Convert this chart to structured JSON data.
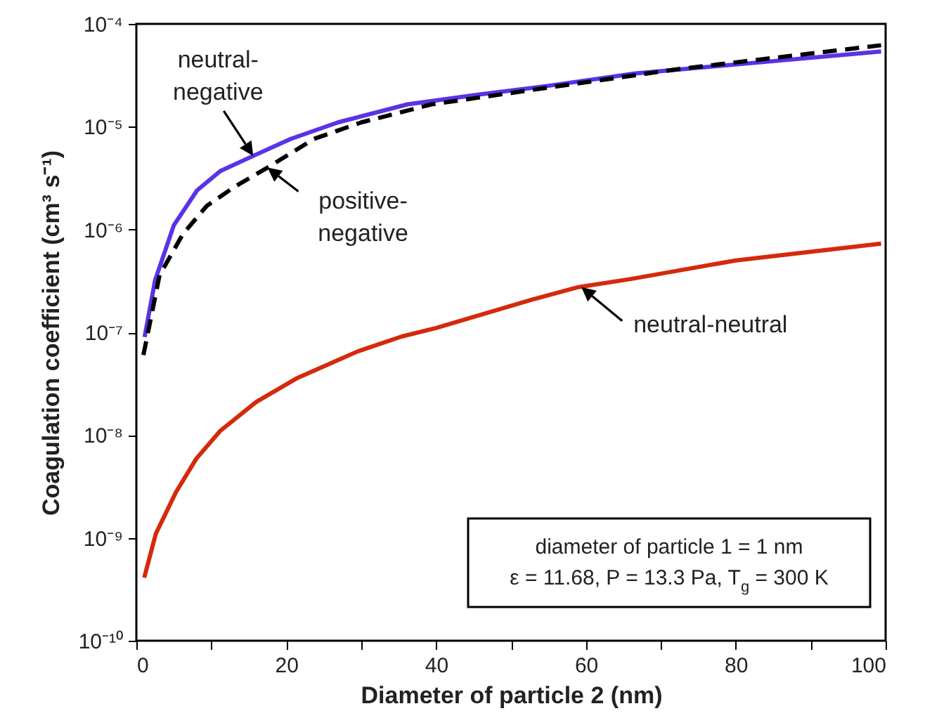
{
  "chart_data": {
    "type": "line",
    "xlabel": "Diameter of particle 2 (nm)",
    "ylabel": "Coagulation coefficient (cm³ s⁻¹)",
    "xlim": [
      0,
      100
    ],
    "ylim": [
      1e-10,
      0.0001
    ],
    "log": "y",
    "grid": false,
    "marker": "none",
    "xticks": [
      0,
      {
        "value": 10,
        "label": null
      },
      20,
      {
        "value": 30,
        "label": null
      },
      40,
      {
        "value": 50,
        "label": null
      },
      60,
      {
        "value": 70,
        "label": null
      },
      80,
      {
        "value": 90,
        "label": null
      },
      100
    ],
    "yticks": [
      {
        "value": 1e-10,
        "label": "10⁻¹⁰"
      },
      {
        "value": 1e-09,
        "label": "10⁻⁹"
      },
      {
        "value": 1e-08,
        "label": "10⁻⁸"
      },
      {
        "value": 1e-07,
        "label": "10⁻⁷"
      },
      {
        "value": 1e-06,
        "label": "10⁻⁶"
      },
      {
        "value": 1e-05,
        "label": "10⁻⁵"
      },
      {
        "value": 0.0001,
        "label": "10⁻⁴"
      }
    ],
    "series": [
      {
        "color": "#d42a0c",
        "line_style": "solid",
        "x": [
          1.05,
          2.6,
          5.3,
          8,
          11.2,
          16,
          21.5,
          29.5,
          35.4,
          40,
          53,
          59,
          66,
          80,
          99.4
        ],
        "values": [
          4.1e-10,
          1.1e-09,
          2.8e-09,
          5.9e-09,
          1.1e-08,
          2.1e-08,
          3.6e-08,
          6.5e-08,
          9.1e-08,
          1.1e-07,
          2.1e-07,
          2.75e-07,
          3.3e-07,
          5e-07,
          7.3e-07
        ]
      },
      {
        "color": "#5a33e6",
        "line_style": "solid",
        "x": [
          1.1,
          2.5,
          5,
          8.1,
          11.2,
          15.6,
          20.6,
          26.9,
          36.2,
          45.6,
          55,
          66.6,
          84.4,
          99.4
        ],
        "values": [
          9e-08,
          3.2e-07,
          1.1e-06,
          2.4e-06,
          3.7e-06,
          5.2e-06,
          7.6e-06,
          1.1e-05,
          1.65e-05,
          2.05e-05,
          2.5e-05,
          3.3e-05,
          4.3e-05,
          5.4e-05
        ]
      },
      {
        "color": "#000000",
        "line_style": "dashed",
        "x": [
          0.94,
          3.1,
          6.2,
          9.4,
          13.1,
          17.5,
          23.7,
          30,
          39.4,
          55,
          71.9,
          99.4
        ],
        "values": [
          6e-08,
          3.6e-07,
          9e-07,
          1.7e-06,
          2.6e-06,
          4e-06,
          7.6e-06,
          1.1e-05,
          1.65e-05,
          2.4e-05,
          3.6e-05,
          6.2e-05
        ]
      }
    ],
    "annotations": [
      {
        "text": "neutral-negative",
        "x": 15.6,
        "y": 5.2e-06
      },
      {
        "text": "positive-negative",
        "x": 17.5,
        "y": 4e-06
      },
      {
        "text": "neutral-neutral",
        "x": 59.4,
        "y": 2.75e-07
      },
      "diameter of particle 1 = 1 nm",
      "ε = 11.68, P = 13.3 Pa, T$_{g}$ = 300 K"
    ]
  }
}
